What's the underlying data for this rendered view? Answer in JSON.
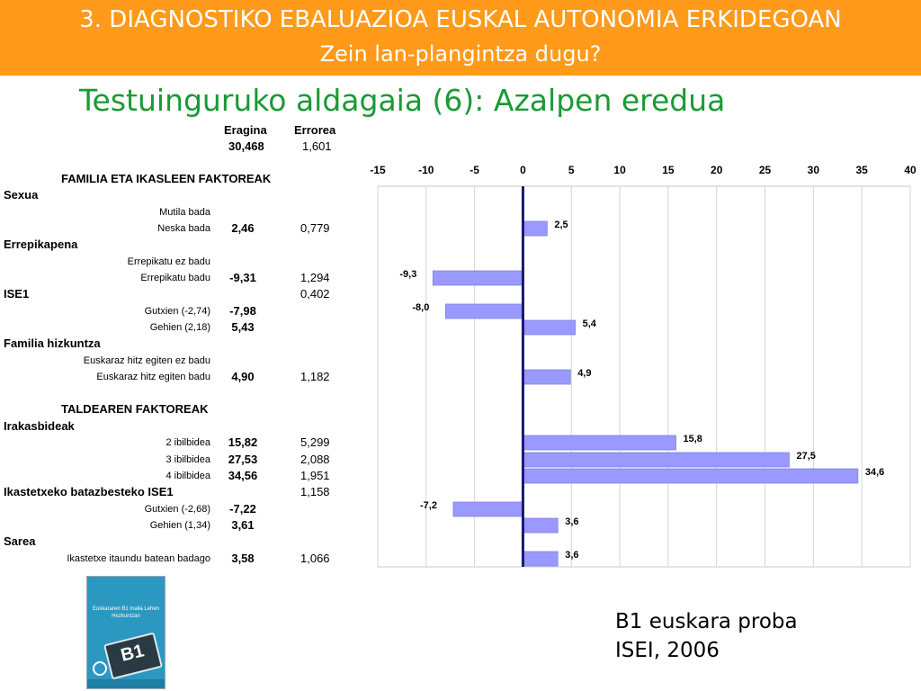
{
  "header": {
    "line1": "3. DIAGNOSTIKO EBALUAZIOA EUSKAL AUTONOMIA ERKIDEGOAN",
    "line2": "Zein lan-plangintza dugu?",
    "banner_color": "#ff9a1a"
  },
  "subtitle": "Testuinguruko aldagaia (6): Azalpen eredua",
  "table": {
    "col_effect": "Eragina",
    "col_error": "Errorea",
    "intercept_effect": "30,468",
    "intercept_error": "1,601",
    "rows": [
      {
        "type": "section",
        "label": "FAMILIA ETA IKASLEEN FAKTOREAK",
        "effect": "",
        "error": ""
      },
      {
        "type": "group",
        "label": "Sexua",
        "effect": "",
        "error": ""
      },
      {
        "type": "sub",
        "label": "Mutila bada",
        "effect": "",
        "error": ""
      },
      {
        "type": "sub",
        "label": "Neska bada",
        "effect": "2,46",
        "error": "0,779"
      },
      {
        "type": "group",
        "label": "Errepikapena",
        "effect": "",
        "error": ""
      },
      {
        "type": "sub",
        "label": "Errepikatu ez badu",
        "effect": "",
        "error": ""
      },
      {
        "type": "sub",
        "label": "Errepikatu badu",
        "effect": "-9,31",
        "error": "1,294"
      },
      {
        "type": "group",
        "label": "ISE1",
        "effect": "",
        "error": "0,402"
      },
      {
        "type": "sub",
        "label": "Gutxien (-2,74)",
        "effect": "-7,98",
        "error": ""
      },
      {
        "type": "sub",
        "label": "Gehien (2,18)",
        "effect": "5,43",
        "error": ""
      },
      {
        "type": "group",
        "label": "Familia hizkuntza",
        "effect": "",
        "error": ""
      },
      {
        "type": "sub",
        "label": "Euskaraz hitz egiten ez badu",
        "effect": "",
        "error": ""
      },
      {
        "type": "sub",
        "label": "Euskaraz hitz egiten badu",
        "effect": "4,90",
        "error": "1,182"
      },
      {
        "type": "section",
        "label": "TALDEAREN FAKTOREAK",
        "effect": "",
        "error": ""
      },
      {
        "type": "group",
        "label": "Irakasbideak",
        "effect": "",
        "error": ""
      },
      {
        "type": "sub",
        "label": "2 ibilbidea",
        "effect": "15,82",
        "error": "5,299"
      },
      {
        "type": "sub",
        "label": "3 ibilbidea",
        "effect": "27,53",
        "error": "2,088"
      },
      {
        "type": "sub",
        "label": "4 ibilbidea",
        "effect": "34,56",
        "error": "1,951"
      },
      {
        "type": "group",
        "label": "Ikastetxeko batazbesteko ISE1",
        "effect": "",
        "error": "1,158"
      },
      {
        "type": "sub",
        "label": "Gutxien (-2,68)",
        "effect": "-7,22",
        "error": ""
      },
      {
        "type": "sub",
        "label": "Gehien (1,34)",
        "effect": "3,61",
        "error": ""
      },
      {
        "type": "group",
        "label": "Sarea",
        "effect": "",
        "error": ""
      },
      {
        "type": "sub",
        "label": "Ikastetxe itaundu batean badago",
        "effect": "3,58",
        "error": "1,066"
      }
    ]
  },
  "chart_data": {
    "type": "bar",
    "orientation": "horizontal",
    "xlim": [
      -15,
      40
    ],
    "ticks": [
      -15,
      -10,
      -5,
      0,
      5,
      10,
      15,
      20,
      25,
      30,
      35,
      40
    ],
    "tick_labels": [
      "-15",
      "-10",
      "-5",
      "0",
      "5",
      "10",
      "15",
      "20",
      "25",
      "30",
      "35",
      "40"
    ],
    "grid": true,
    "bar_color": "#9999ff",
    "zero_line_color": "#1a1a70",
    "bars": [
      {
        "row": "Neska bada",
        "value": 2.5,
        "label": "2,5"
      },
      {
        "row": "Errepikatu badu",
        "value": -9.3,
        "label": "-9,3"
      },
      {
        "row": "Gutxien (-2,74)",
        "value": -8.0,
        "label": "-8,0"
      },
      {
        "row": "Gehien (2,18)",
        "value": 5.4,
        "label": "5,4"
      },
      {
        "row": "Euskaraz hitz egiten badu",
        "value": 4.9,
        "label": "4,9"
      },
      {
        "row": "2 ibilbidea",
        "value": 15.8,
        "label": "15,8"
      },
      {
        "row": "3 ibilbidea",
        "value": 27.5,
        "label": "27,5"
      },
      {
        "row": "4 ibilbidea",
        "value": 34.6,
        "label": "34,6"
      },
      {
        "row": "Gutxien (-2,68)",
        "value": -7.2,
        "label": "-7,2"
      },
      {
        "row": "Gehien (1,34)",
        "value": 3.6,
        "label": "3,6"
      },
      {
        "row": "Ikastetxe itaundu batean badago",
        "value": 3.6,
        "label": "3,6"
      }
    ]
  },
  "book": {
    "title": "Euskararen B1 maila Lehen Hezkuntzan",
    "plate": "B1"
  },
  "note": {
    "line1": "B1 euskara proba",
    "line2": "ISEI, 2006"
  }
}
